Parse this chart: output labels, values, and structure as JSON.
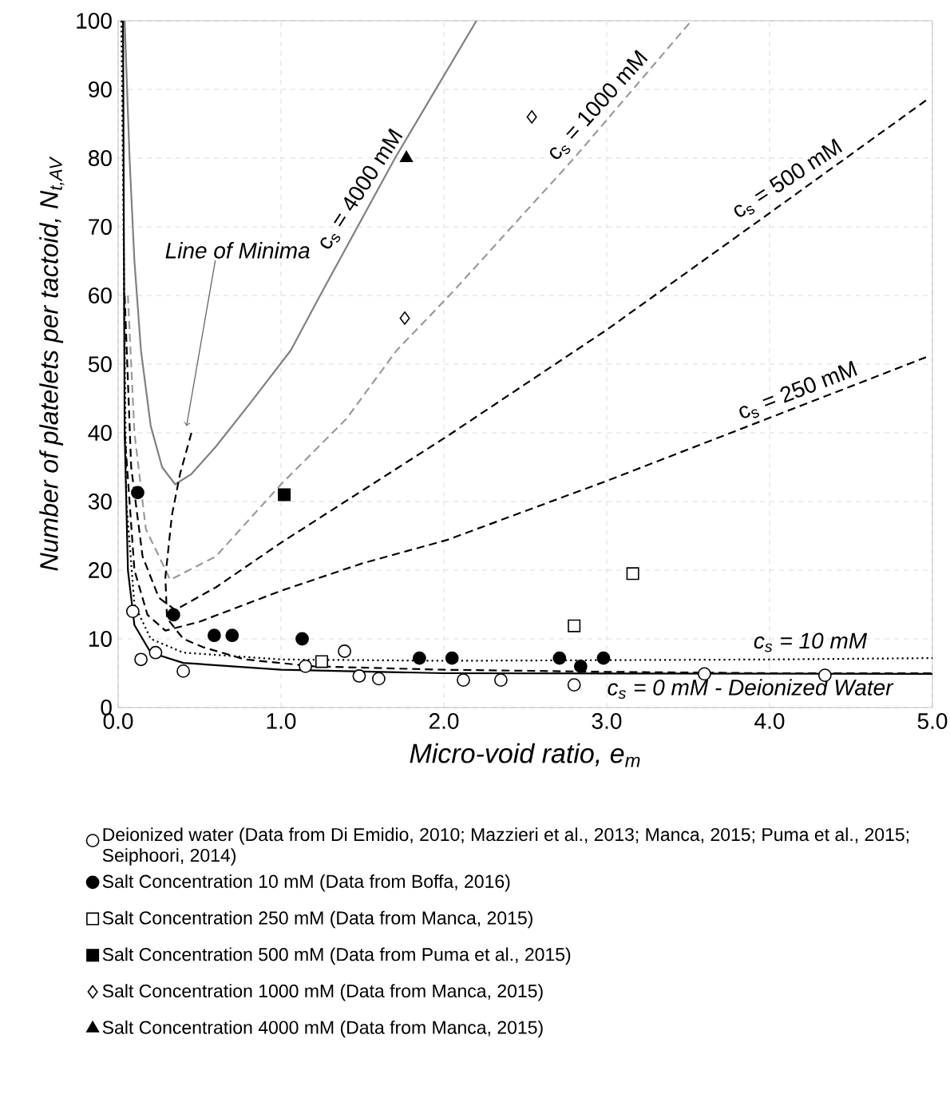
{
  "chart_data": {
    "type": "scatter",
    "xlabel": "Micro-void ratio, e$_{m}$",
    "ylabel": "Number of platelets per tactoid, N$_{t,AV}$",
    "xlim": [
      0,
      5
    ],
    "ylim": [
      0,
      100
    ],
    "xticks": [
      {
        "value": 0,
        "label": "0.0"
      },
      {
        "value": 1,
        "label": "1.0"
      },
      {
        "value": 2,
        "label": "2.0"
      },
      {
        "value": 3,
        "label": "3.0"
      },
      {
        "value": 4,
        "label": "4.0"
      },
      {
        "value": 5,
        "label": "5.0"
      }
    ],
    "yticks": [
      0,
      10,
      20,
      30,
      40,
      50,
      60,
      70,
      80,
      90,
      100
    ],
    "grid": true,
    "legend": "bottom",
    "series": [
      {
        "type": "line",
        "color": "#808080",
        "line_style": "solid",
        "marker": "none",
        "x": [
          0.04,
          0.07,
          0.1,
          0.14,
          0.2,
          0.27,
          0.35,
          0.45,
          0.6,
          0.8,
          1.06,
          1.24,
          1.7,
          1.95,
          2.2
        ],
        "values": [
          100,
          80,
          65,
          52,
          41,
          35,
          32.5,
          34,
          38,
          44,
          52,
          60,
          80,
          90,
          100
        ]
      },
      {
        "type": "line",
        "color": "#9a9a9a",
        "line_style": "dashed",
        "marker": "none",
        "x": [
          0.06,
          0.1,
          0.17,
          0.32,
          0.6,
          1.0,
          1.4,
          1.71,
          2.05,
          2.8,
          3.52
        ],
        "values": [
          60,
          40,
          26,
          18.6,
          22,
          32.5,
          42,
          52,
          60.4,
          80,
          100
        ]
      },
      {
        "type": "line",
        "color": "#000000",
        "line_style": "dashed",
        "marker": "none",
        "x": [
          0.04,
          0.08,
          0.15,
          0.25,
          0.35,
          0.6,
          1.0,
          2.02,
          3.0,
          4.0,
          4.96
        ],
        "values": [
          60,
          35,
          22,
          16,
          14.2,
          17.5,
          24,
          39.5,
          55,
          72,
          88.4
        ]
      },
      {
        "type": "line",
        "color": "#000000",
        "line_style": "dashed",
        "marker": "none",
        "x": [
          0.04,
          0.1,
          0.18,
          0.29,
          0.5,
          1.0,
          1.5,
          2.02,
          3.0,
          3.98,
          4.96
        ],
        "values": [
          40,
          20,
          13.5,
          11.2,
          12.5,
          17,
          21,
          24.4,
          33,
          42,
          51
        ]
      },
      {
        "type": "line",
        "color": "#000000",
        "line_style": "dotted",
        "marker": "none",
        "x": [
          0.02,
          0.05,
          0.1,
          0.2,
          0.4,
          1.0,
          2.0,
          3.0,
          4.0,
          5.0
        ],
        "values": [
          100,
          30,
          15,
          10,
          8,
          7,
          6.8,
          6.9,
          7,
          7.2
        ]
      },
      {
        "type": "line",
        "color": "#000000",
        "line_style": "solid",
        "marker": "none",
        "x": [
          0.03,
          0.04,
          0.06,
          0.1,
          0.2,
          0.4,
          1.0,
          2.0,
          5.0
        ],
        "values": [
          100,
          40,
          20,
          12,
          8,
          6.5,
          5.5,
          5,
          4.9
        ]
      },
      {
        "type": "line",
        "color": "#000000",
        "line_style": "dashed",
        "marker": "none",
        "x": [
          0.45,
          0.38,
          0.33,
          0.29,
          0.3,
          0.4,
          0.52,
          0.78,
          1.2,
          2.0,
          3.0,
          4.0,
          5.0
        ],
        "values": [
          40,
          34,
          28,
          19,
          13,
          10,
          8.8,
          7,
          6,
          5.5,
          5.2,
          5,
          5
        ]
      },
      {
        "type": "scatter",
        "name": "Deionized water (Data from Di Emidio, 2010; Mazzieri et al., 2013; Manca, 2015; Puma et al., 2015; Seiphoori, 2014)",
        "color": "#ffffff",
        "marker": "circle",
        "x": [
          0.09,
          0.14,
          0.23,
          0.4,
          1.15,
          1.39,
          1.48,
          1.6,
          2.12,
          2.35,
          2.8,
          3.6,
          4.34
        ],
        "values": [
          14,
          7,
          8,
          5.3,
          6,
          8.2,
          4.6,
          4.2,
          4,
          4,
          3.3,
          4.9,
          4.7
        ]
      },
      {
        "type": "scatter",
        "name": "Salt Concentration 10 mM (Data from Boffa, 2016)",
        "color": "#000000",
        "marker": "circle",
        "x": [
          0.12,
          0.34,
          0.59,
          0.7,
          1.13,
          1.85,
          2.05,
          2.71,
          2.84,
          2.98
        ],
        "values": [
          31.3,
          13.5,
          10.5,
          10.5,
          10,
          7.2,
          7.2,
          7.2,
          6,
          7.2
        ]
      },
      {
        "type": "scatter",
        "name": "Salt Concentration 250 mM (Data from Manca, 2015)",
        "color": "#ffffff",
        "marker": "square",
        "x": [
          1.25,
          2.8,
          3.16
        ],
        "values": [
          6.7,
          11.9,
          19.5
        ]
      },
      {
        "type": "scatter",
        "name": "Salt Concentration 500 mM (Data from Puma et al., 2015)",
        "color": "#000000",
        "marker": "square",
        "x": [
          1.02
        ],
        "values": [
          31
        ]
      },
      {
        "type": "scatter",
        "name": "Salt Concentration 1000 mM (Data from Manca, 2015)",
        "color": "#ffffff",
        "marker": "diamond",
        "x": [
          1.76,
          2.54
        ],
        "values": [
          56.7,
          86
        ]
      },
      {
        "type": "scatter",
        "name": "Salt Concentration 4000 mM (Data from Manca, 2015)",
        "color": "#000000",
        "marker": "triangle",
        "x": [
          1.77
        ],
        "values": [
          80
        ]
      }
    ],
    "annotations": [
      {
        "text": "c$_{s}$ = 4000 mM",
        "x": 1.55,
        "y": 74
      },
      {
        "text": "c$_{s}$ = 1000 mM",
        "x": 3.0,
        "y": 86
      },
      {
        "text": "c$_{s}$ = 500 mM",
        "x": 4.15,
        "y": 75
      },
      {
        "text": "c$_{s}$ = 250 mM",
        "x": 4.2,
        "y": 44
      },
      {
        "text": "c$_{s}$ = 10 mM",
        "x": 4.25,
        "y": 7.1
      },
      {
        "text": "c$_{s}$ = 0 mM - Deionized Water",
        "x": 3.88,
        "y": 4.9
      },
      {
        "text": "Line of Minima",
        "x": 0.42,
        "y": 41
      }
    ]
  }
}
